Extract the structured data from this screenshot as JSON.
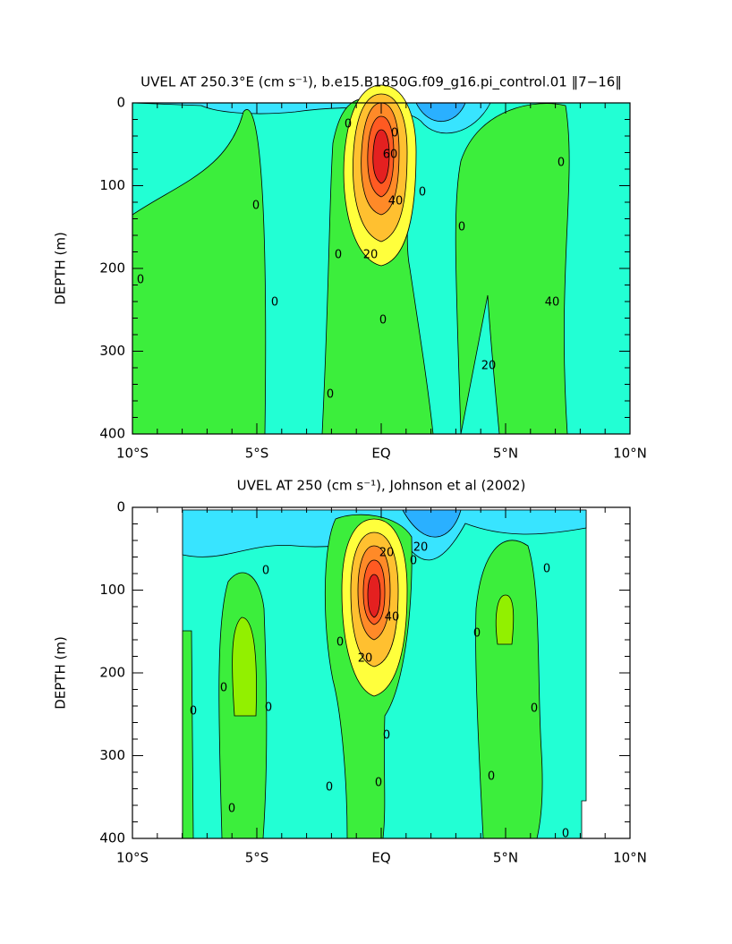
{
  "chart_data": [
    {
      "type": "contour",
      "title": "UVEL AT 250.3°E (cm s⁻¹), b.e15.B1850G.f09_g16.pi_control.01 ‖7−16‖",
      "ylabel": "DEPTH (m)",
      "xlim": [
        -10,
        10
      ],
      "xticks": [
        {
          "value": -10,
          "label": "10°S"
        },
        {
          "value": -5,
          "label": "5°S"
        },
        {
          "value": 0,
          "label": "EQ"
        },
        {
          "value": 5,
          "label": "5°N"
        },
        {
          "value": 10,
          "label": "10°N"
        }
      ],
      "ylim": [
        400,
        0
      ],
      "yticks": [
        0,
        100,
        200,
        300,
        400
      ],
      "contour_labels": [
        0,
        0,
        0,
        20,
        40,
        60,
        0,
        0,
        0,
        0,
        0,
        0,
        20,
        40,
        0,
        0
      ]
    },
    {
      "type": "contour",
      "title": "UVEL AT 250 (cm s⁻¹), Johnson et al (2002)",
      "ylabel": "DEPTH (m)",
      "xlim": [
        -10,
        10
      ],
      "xticks": [
        {
          "value": -10,
          "label": "10°S"
        },
        {
          "value": -5,
          "label": "5°S"
        },
        {
          "value": 0,
          "label": "EQ"
        },
        {
          "value": 5,
          "label": "5°N"
        },
        {
          "value": 10,
          "label": "10°N"
        }
      ],
      "ylim": [
        400,
        0
      ],
      "yticks": [
        0,
        100,
        200,
        300,
        400
      ],
      "contour_labels": [
        0,
        0,
        0,
        0,
        0,
        0,
        20,
        20,
        40,
        20,
        0,
        0,
        0,
        0,
        0,
        0,
        0,
        0,
        0
      ]
    }
  ]
}
